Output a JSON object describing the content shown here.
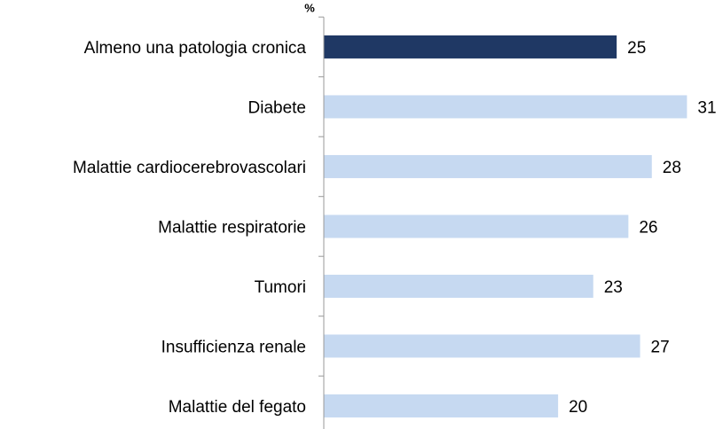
{
  "chart_data": {
    "type": "bar",
    "orientation": "horizontal",
    "x_axis_label": "%",
    "categories": [
      "Almeno una patologia cronica",
      "Diabete",
      "Malattie cardiocerebrovascolari",
      "Malattie respiratorie",
      "Tumori",
      "Insufficienza renale",
      "Malattie del fegato"
    ],
    "values": [
      25,
      31,
      28,
      26,
      23,
      27,
      20
    ],
    "colors": [
      "#1f3864",
      "#c6d9f1",
      "#c6d9f1",
      "#c6d9f1",
      "#c6d9f1",
      "#c6d9f1",
      "#c6d9f1"
    ],
    "xlim": [
      0,
      34
    ]
  }
}
